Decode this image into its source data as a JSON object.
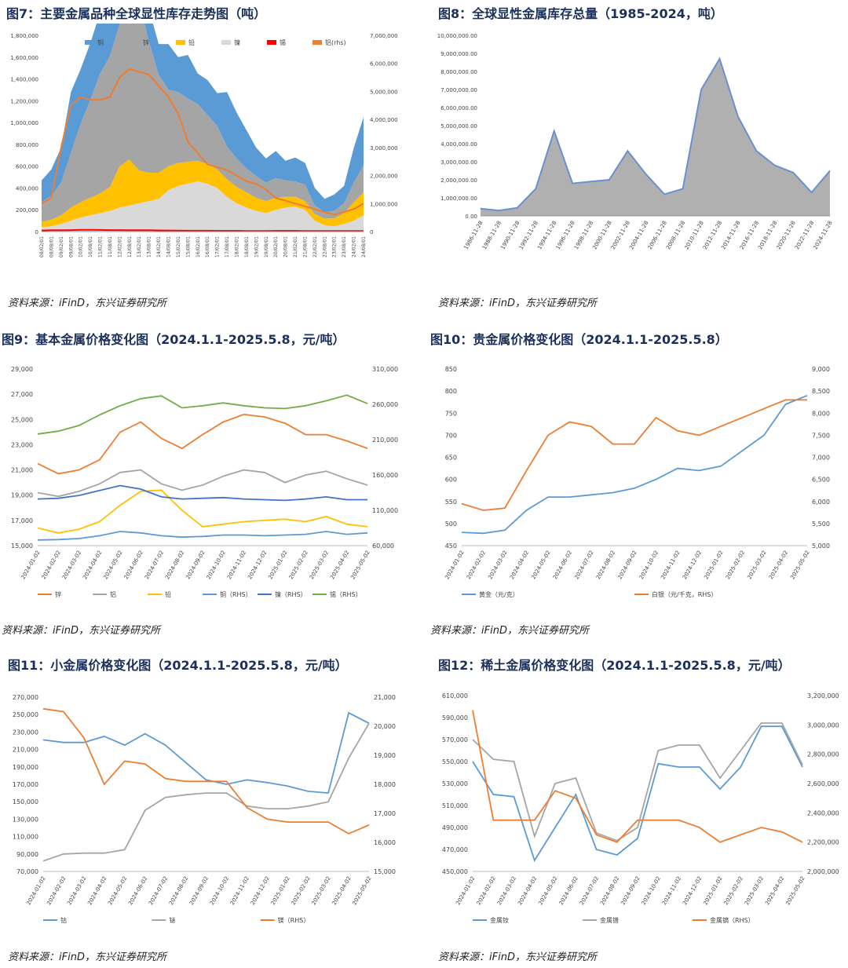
{
  "panels": {
    "p7": {
      "title": "图7：主要金属品种全球显性库存走势图（吨）",
      "source": "资料来源：iFinD，东兴证券研究所"
    },
    "p8": {
      "title": "图8：全球显性金属库存总量（1985-2024，吨）",
      "source": "资料来源：iFinD，东兴证券研究所"
    },
    "p9": {
      "title": "图9：基本金属价格变化图（2024.1.1-2025.5.8，元/吨）",
      "source": "资料来源：iFinD，东兴证券研究所"
    },
    "p10": {
      "title": "图10：贵金属价格变化图（2024.1.1-2025.5.8）",
      "source": "资料来源：iFinD，东兴证券研究所"
    },
    "p11": {
      "title": "图11：小金属价格变化图（2024.1.1-2025.5.8，元/吨）",
      "source": "资料来源：iFinD，东兴证券研究所"
    },
    "p12": {
      "title": "图12：稀土金属价格变化图（2024.1.1-2025.5.8，元/吨）",
      "source": "资料来源：iFinD，东兴证券研究所"
    }
  },
  "chart_data": [
    {
      "id": "c7",
      "type": "area",
      "x": [
        "08/02/01",
        "08/08/01",
        "09/02/01",
        "09/08/01",
        "10/02/01",
        "10/08/01",
        "11/02/01",
        "11/08/01",
        "12/02/01",
        "12/08/01",
        "13/02/01",
        "13/08/01",
        "14/02/01",
        "14/08/01",
        "15/02/01",
        "15/08/01",
        "16/02/01",
        "16/08/01",
        "17/02/01",
        "17/08/01",
        "18/02/01",
        "18/08/01",
        "19/02/01",
        "19/08/01",
        "20/02/01",
        "20/08/01",
        "21/02/01",
        "21/08/01",
        "22/02/01",
        "22/08/01",
        "23/02/01",
        "23/08/01",
        "24/02/01",
        "24/08/01"
      ],
      "ylim": [
        0,
        1800000
      ],
      "y2lim": [
        0,
        7000000
      ],
      "yticks": [
        "0",
        "200,000",
        "400,000",
        "600,000",
        "800,000",
        "1,000,000",
        "1,200,000",
        "1,400,000",
        "1,600,000",
        "1,800,000"
      ],
      "y2ticks": [
        "0",
        "1,000,000",
        "2,000,000",
        "3,000,000",
        "4,000,000",
        "5,000,000",
        "6,000,000",
        "7,000,000"
      ],
      "legend": [
        "铜",
        "锌",
        "铅",
        "镍",
        "锡",
        "铝(rhs)"
      ],
      "colors": [
        "#5b9bd5",
        "#a5a5a5",
        "#ffc000",
        "#d9d9d9",
        "#ff0000",
        "#ed7d31"
      ],
      "series": [
        {
          "name": "铜",
          "values": [
            200,
            240,
            320,
            560,
            500,
            520,
            560,
            520,
            450,
            380,
            360,
            300,
            280,
            420,
            320,
            400,
            280,
            320,
            300,
            500,
            420,
            350,
            260,
            220,
            250,
            180,
            220,
            200,
            160,
            120,
            150,
            160,
            320,
            440
          ]
        },
        {
          "name": "锌",
          "values": [
            180,
            220,
            300,
            500,
            720,
            900,
            1100,
            1200,
            1300,
            1380,
            1550,
            1200,
            900,
            700,
            650,
            580,
            520,
            450,
            400,
            300,
            260,
            220,
            200,
            170,
            180,
            150,
            140,
            150,
            80,
            60,
            70,
            90,
            180,
            250
          ]
        },
        {
          "name": "铅",
          "values": [
            50,
            60,
            80,
            120,
            140,
            160,
            180,
            220,
            380,
            420,
            300,
            260,
            240,
            220,
            210,
            200,
            190,
            180,
            170,
            160,
            150,
            140,
            120,
            110,
            110,
            100,
            90,
            80,
            60,
            60,
            70,
            100,
            170,
            210
          ]
        },
        {
          "name": "镍",
          "values": [
            40,
            50,
            70,
            100,
            130,
            150,
            170,
            190,
            220,
            240,
            260,
            280,
            300,
            380,
            420,
            440,
            460,
            440,
            400,
            320,
            260,
            220,
            190,
            170,
            200,
            220,
            230,
            200,
            100,
            60,
            50,
            70,
            100,
            150
          ]
        },
        {
          "name": "锡",
          "values": [
            10,
            12,
            12,
            14,
            16,
            16,
            15,
            14,
            14,
            13,
            12,
            12,
            11,
            10,
            9,
            8,
            8,
            8,
            7,
            7,
            7,
            6,
            6,
            6,
            7,
            7,
            7,
            6,
            5,
            5,
            5,
            6,
            6,
            6
          ]
        },
        {
          "name": "铝(rhs)",
          "values": [
            1000,
            1200,
            3000,
            4500,
            4800,
            4700,
            4700,
            4800,
            5500,
            5800,
            5700,
            5600,
            5200,
            4800,
            4200,
            3200,
            2800,
            2400,
            2300,
            2200,
            2000,
            1800,
            1700,
            1500,
            1200,
            1100,
            1000,
            900,
            800,
            700,
            600,
            700,
            800,
            1000
          ]
        }
      ]
    },
    {
      "id": "c8",
      "type": "area",
      "x": [
        "1986-11-28",
        "1988-11-28",
        "1990-11-28",
        "1992-11-28",
        "1994-11-28",
        "1996-11-28",
        "1998-11-28",
        "2000-11-28",
        "2002-11-28",
        "2004-11-28",
        "2006-11-28",
        "2008-11-28",
        "2010-11-28",
        "2012-11-28",
        "2014-11-28",
        "2016-11-28",
        "2018-11-28",
        "2020-11-28",
        "2022-11-28",
        "2024-11-28"
      ],
      "ylim": [
        0,
        10000000
      ],
      "yticks": [
        "0.00",
        "1,000,000.00",
        "2,000,000.00",
        "3,000,000.00",
        "4,000,000.00",
        "5,000,000.00",
        "6,000,000.00",
        "7,000,000.00",
        "8,000,000.00",
        "9,000,000.00",
        "10,000,000.00"
      ],
      "values": [
        400000,
        300000,
        450000,
        1500000,
        4700000,
        1800000,
        1900000,
        2000000,
        3600000,
        2300000,
        1200000,
        1500000,
        7000000,
        8700000,
        5500000,
        3600000,
        2800000,
        2400000,
        1300000,
        2500000
      ]
    },
    {
      "id": "c9",
      "type": "line",
      "x": [
        "2024-01-02",
        "2024-02-02",
        "2024-03-02",
        "2024-04-02",
        "2024-05-02",
        "2024-06-02",
        "2024-07-02",
        "2024-08-02",
        "2024-09-02",
        "2024-10-02",
        "2024-11-02",
        "2024-12-02",
        "2025-01-02",
        "2025-02-02",
        "2025-03-02",
        "2025-04-02",
        "2025-05-02"
      ],
      "ylim": [
        15000,
        29000
      ],
      "y2lim": [
        60000,
        310000
      ],
      "yticks": [
        "15,000",
        "17,000",
        "19,000",
        "21,000",
        "23,000",
        "25,000",
        "27,000",
        "29,000"
      ],
      "y2ticks": [
        "60,000",
        "110,000",
        "160,000",
        "210,000",
        "260,000",
        "310,000"
      ],
      "series": [
        {
          "name": "锌",
          "axis": "left",
          "color": "#ed7d31",
          "values": [
            21500,
            20700,
            21000,
            21800,
            24000,
            24800,
            23500,
            22700,
            23800,
            24800,
            25400,
            25200,
            24700,
            23800,
            23800,
            23300,
            22700
          ]
        },
        {
          "name": "铝",
          "axis": "left",
          "color": "#a5a5a5",
          "values": [
            19200,
            18900,
            19300,
            19900,
            20800,
            21000,
            19900,
            19400,
            19800,
            20500,
            21000,
            20800,
            20000,
            20600,
            20900,
            20300,
            19800
          ]
        },
        {
          "name": "铅",
          "axis": "left",
          "color": "#ffc000",
          "values": [
            16400,
            16000,
            16300,
            16900,
            18200,
            19300,
            19400,
            17800,
            16500,
            16700,
            16900,
            17000,
            17100,
            16900,
            17300,
            16700,
            16500
          ]
        },
        {
          "name": "铜（RHS）",
          "axis": "right",
          "color": "#5b9bd5",
          "values": [
            68000,
            68500,
            70000,
            74000,
            80000,
            78000,
            74000,
            72000,
            73000,
            75000,
            75000,
            74000,
            75000,
            76000,
            80000,
            76000,
            78000
          ]
        },
        {
          "name": "镍（RHS）",
          "axis": "right",
          "color": "#4472c4",
          "values": [
            126000,
            127000,
            131000,
            138000,
            145000,
            140000,
            129000,
            126000,
            127000,
            128000,
            126000,
            125000,
            124000,
            126000,
            129000,
            125000,
            125000
          ]
        },
        {
          "name": "锡（RHS）",
          "axis": "right",
          "color": "#70ad47",
          "values": [
            218000,
            222000,
            230000,
            245000,
            258000,
            268000,
            272000,
            255000,
            258000,
            262000,
            258000,
            255000,
            254000,
            258000,
            265000,
            273000,
            261000
          ]
        }
      ]
    },
    {
      "id": "c10",
      "type": "line",
      "x": [
        "2024-01-02",
        "2024-02-02",
        "2024-03-02",
        "2024-04-02",
        "2024-05-02",
        "2024-06-02",
        "2024-07-02",
        "2024-08-02",
        "2024-09-02",
        "2024-10-02",
        "2024-11-02",
        "2024-12-02",
        "2025-01-02",
        "2025-02-02",
        "2025-03-02",
        "2025-04-02",
        "2025-05-02"
      ],
      "ylim": [
        450,
        850
      ],
      "y2lim": [
        5000,
        9000
      ],
      "yticks": [
        "450",
        "500",
        "550",
        "600",
        "650",
        "700",
        "750",
        "800",
        "850"
      ],
      "y2ticks": [
        "5,000",
        "5,500",
        "6,000",
        "6,500",
        "7,000",
        "7,500",
        "8,000",
        "8,500",
        "9,000"
      ],
      "series": [
        {
          "name": "黄金（元/克）",
          "axis": "left",
          "color": "#5b9bd5",
          "values": [
            480,
            478,
            485,
            530,
            560,
            560,
            565,
            570,
            580,
            600,
            625,
            620,
            630,
            665,
            700,
            770,
            790
          ]
        },
        {
          "name": "白银（元/千克，RHS）",
          "axis": "right",
          "color": "#ed7d31",
          "values": [
            5950,
            5800,
            5850,
            6700,
            7500,
            7800,
            7700,
            7300,
            7300,
            7900,
            7600,
            7500,
            7700,
            7900,
            8100,
            8300,
            8300
          ]
        }
      ]
    },
    {
      "id": "c11",
      "type": "line",
      "x": [
        "2024-01-02",
        "2024-02-02",
        "2024-03-02",
        "2024-04-02",
        "2024-05-02",
        "2024-06-02",
        "2024-07-02",
        "2024-08-02",
        "2024-09-02",
        "2024-10-02",
        "2024-11-02",
        "2024-12-02",
        "2025-01-02",
        "2025-02-02",
        "2025-03-02",
        "2025-04-02",
        "2025-05-02"
      ],
      "ylim": [
        70000,
        270000
      ],
      "y2lim": [
        15000,
        21000
      ],
      "yticks": [
        "70,000",
        "90,000",
        "110,000",
        "130,000",
        "150,000",
        "170,000",
        "190,000",
        "210,000",
        "230,000",
        "250,000",
        "270,000"
      ],
      "y2ticks": [
        "15,000",
        "16,000",
        "17,000",
        "18,000",
        "19,000",
        "20,000",
        "21,000"
      ],
      "series": [
        {
          "name": "钴",
          "axis": "left",
          "color": "#5b9bd5",
          "values": [
            221000,
            218000,
            218000,
            225000,
            215000,
            228000,
            215000,
            195000,
            175000,
            170000,
            175000,
            172000,
            168000,
            162000,
            160000,
            252000,
            240000
          ]
        },
        {
          "name": "铋",
          "axis": "left",
          "color": "#a5a5a5",
          "values": [
            82000,
            90000,
            91000,
            91000,
            95000,
            140000,
            155000,
            158000,
            160000,
            160000,
            145000,
            142000,
            142000,
            145000,
            150000,
            200000,
            240000
          ]
        },
        {
          "name": "镁（RHS）",
          "axis": "right",
          "color": "#ed7d31",
          "values": [
            20600,
            20500,
            19600,
            18000,
            18800,
            18700,
            18200,
            18100,
            18100,
            18100,
            17200,
            16800,
            16700,
            16700,
            16700,
            16300,
            16600
          ]
        }
      ]
    },
    {
      "id": "c12",
      "type": "line",
      "x": [
        "2024-01-02",
        "2024-02-02",
        "2024-03-02",
        "2024-04-02",
        "2024-05-02",
        "2024-06-02",
        "2024-07-02",
        "2024-08-02",
        "2024-09-02",
        "2024-10-02",
        "2024-11-02",
        "2024-12-02",
        "2025-01-02",
        "2025-02-02",
        "2025-03-02",
        "2025-04-02",
        "2025-05-02"
      ],
      "ylim": [
        450000,
        610000
      ],
      "y2lim": [
        2000000,
        3200000
      ],
      "yticks": [
        "450,000",
        "470,000",
        "490,000",
        "510,000",
        "530,000",
        "550,000",
        "570,000",
        "590,000",
        "610,000"
      ],
      "y2ticks": [
        "2,000,000",
        "2,200,000",
        "2,400,000",
        "2,600,000",
        "2,800,000",
        "3,000,000",
        "3,200,000"
      ],
      "series": [
        {
          "name": "金属钕",
          "axis": "left",
          "color": "#5b9bd5",
          "values": [
            550000,
            520000,
            518000,
            460000,
            490000,
            520000,
            470000,
            465000,
            480000,
            548000,
            545000,
            545000,
            525000,
            545000,
            582000,
            582000,
            545000
          ]
        },
        {
          "name": "金属镨",
          "axis": "left",
          "color": "#a5a5a5",
          "values": [
            570000,
            552000,
            550000,
            482000,
            530000,
            535000,
            485000,
            478000,
            490000,
            560000,
            565000,
            565000,
            535000,
            560000,
            585000,
            585000,
            547000
          ]
        },
        {
          "name": "金属镝（RHS）",
          "axis": "right",
          "color": "#ed7d31",
          "values": [
            3100000,
            2350000,
            2350000,
            2350000,
            2550000,
            2500000,
            2250000,
            2200000,
            2350000,
            2350000,
            2350000,
            2300000,
            2200000,
            2250000,
            2300000,
            2270000,
            2200000
          ]
        }
      ]
    }
  ]
}
